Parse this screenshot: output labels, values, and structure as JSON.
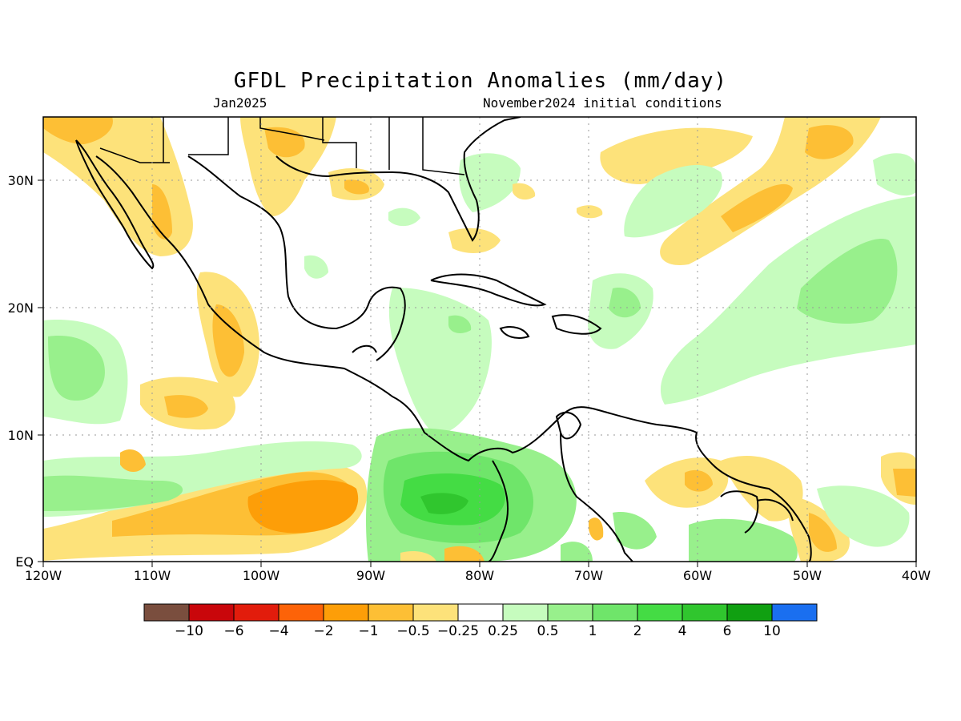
{
  "title": "GFDL Precipitation Anomalies (mm/day)",
  "subtitle_left": "Jan2025",
  "subtitle_right": "November2024 initial conditions",
  "map": {
    "region": "Caribbean, Central America, Gulf of Mexico",
    "lon_range": [
      -120,
      -40
    ],
    "lat_range": [
      0,
      35
    ],
    "x_ticks": [
      "120W",
      "110W",
      "100W",
      "90W",
      "80W",
      "70W",
      "60W",
      "50W",
      "40W"
    ],
    "y_ticks": [
      "EQ",
      "10N",
      "20N",
      "30N"
    ],
    "grid": "dotted"
  },
  "colorbar": {
    "labels": [
      "−10",
      "−6",
      "−4",
      "−2",
      "−1",
      "−0.5",
      "−0.25",
      "0.25",
      "0.5",
      "1",
      "2",
      "4",
      "6",
      "10"
    ],
    "colors": [
      "#7a4e3e",
      "#c9060b",
      "#e21c0c",
      "#fd6308",
      "#fd9e08",
      "#fdbf35",
      "#fde27a",
      "#ffffff",
      "#c6fcbe",
      "#98f08c",
      "#6fe56a",
      "#44dc44",
      "#30c62e",
      "#10a011",
      "#1a6ff0"
    ]
  }
}
